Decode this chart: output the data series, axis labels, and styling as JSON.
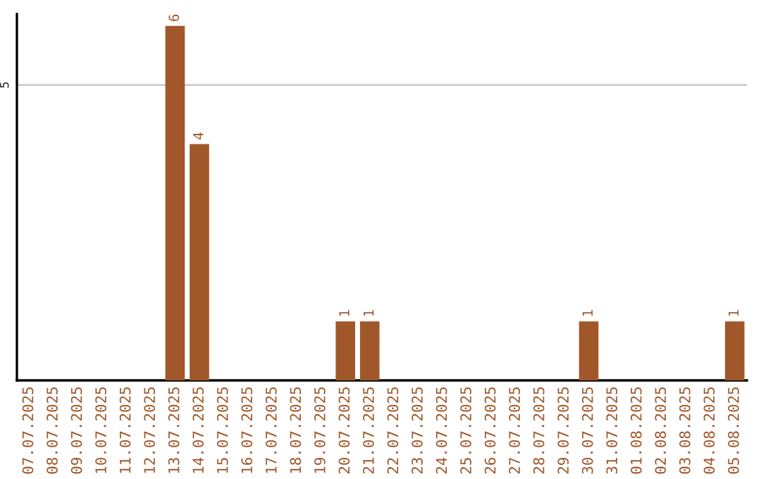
{
  "chart_data": {
    "type": "bar",
    "categories": [
      "07.07.2025",
      "08.07.2025",
      "09.07.2025",
      "10.07.2025",
      "11.07.2025",
      "12.07.2025",
      "13.07.2025",
      "14.07.2025",
      "15.07.2025",
      "16.07.2025",
      "17.07.2025",
      "18.07.2025",
      "19.07.2025",
      "20.07.2025",
      "21.07.2025",
      "22.07.2025",
      "23.07.2025",
      "24.07.2025",
      "25.07.2025",
      "26.07.2025",
      "27.07.2025",
      "28.07.2025",
      "29.07.2025",
      "30.07.2025",
      "31.07.2025",
      "01.08.2025",
      "02.08.2025",
      "03.08.2025",
      "04.08.2025",
      "05.08.2025"
    ],
    "values": [
      0,
      0,
      0,
      0,
      0,
      0,
      6,
      4,
      0,
      0,
      0,
      0,
      0,
      1,
      1,
      0,
      0,
      0,
      0,
      0,
      0,
      0,
      0,
      1,
      0,
      0,
      0,
      0,
      0,
      1
    ],
    "value_labels": [
      null,
      null,
      null,
      null,
      null,
      null,
      "6",
      "4",
      null,
      null,
      null,
      null,
      null,
      "1",
      "1",
      null,
      null,
      null,
      null,
      null,
      null,
      null,
      null,
      "1",
      null,
      null,
      null,
      null,
      null,
      "1"
    ],
    "color": "#a0582a",
    "ylim": [
      0,
      6.2
    ],
    "yticks": [
      5
    ],
    "grid": "y",
    "legend": false
  }
}
